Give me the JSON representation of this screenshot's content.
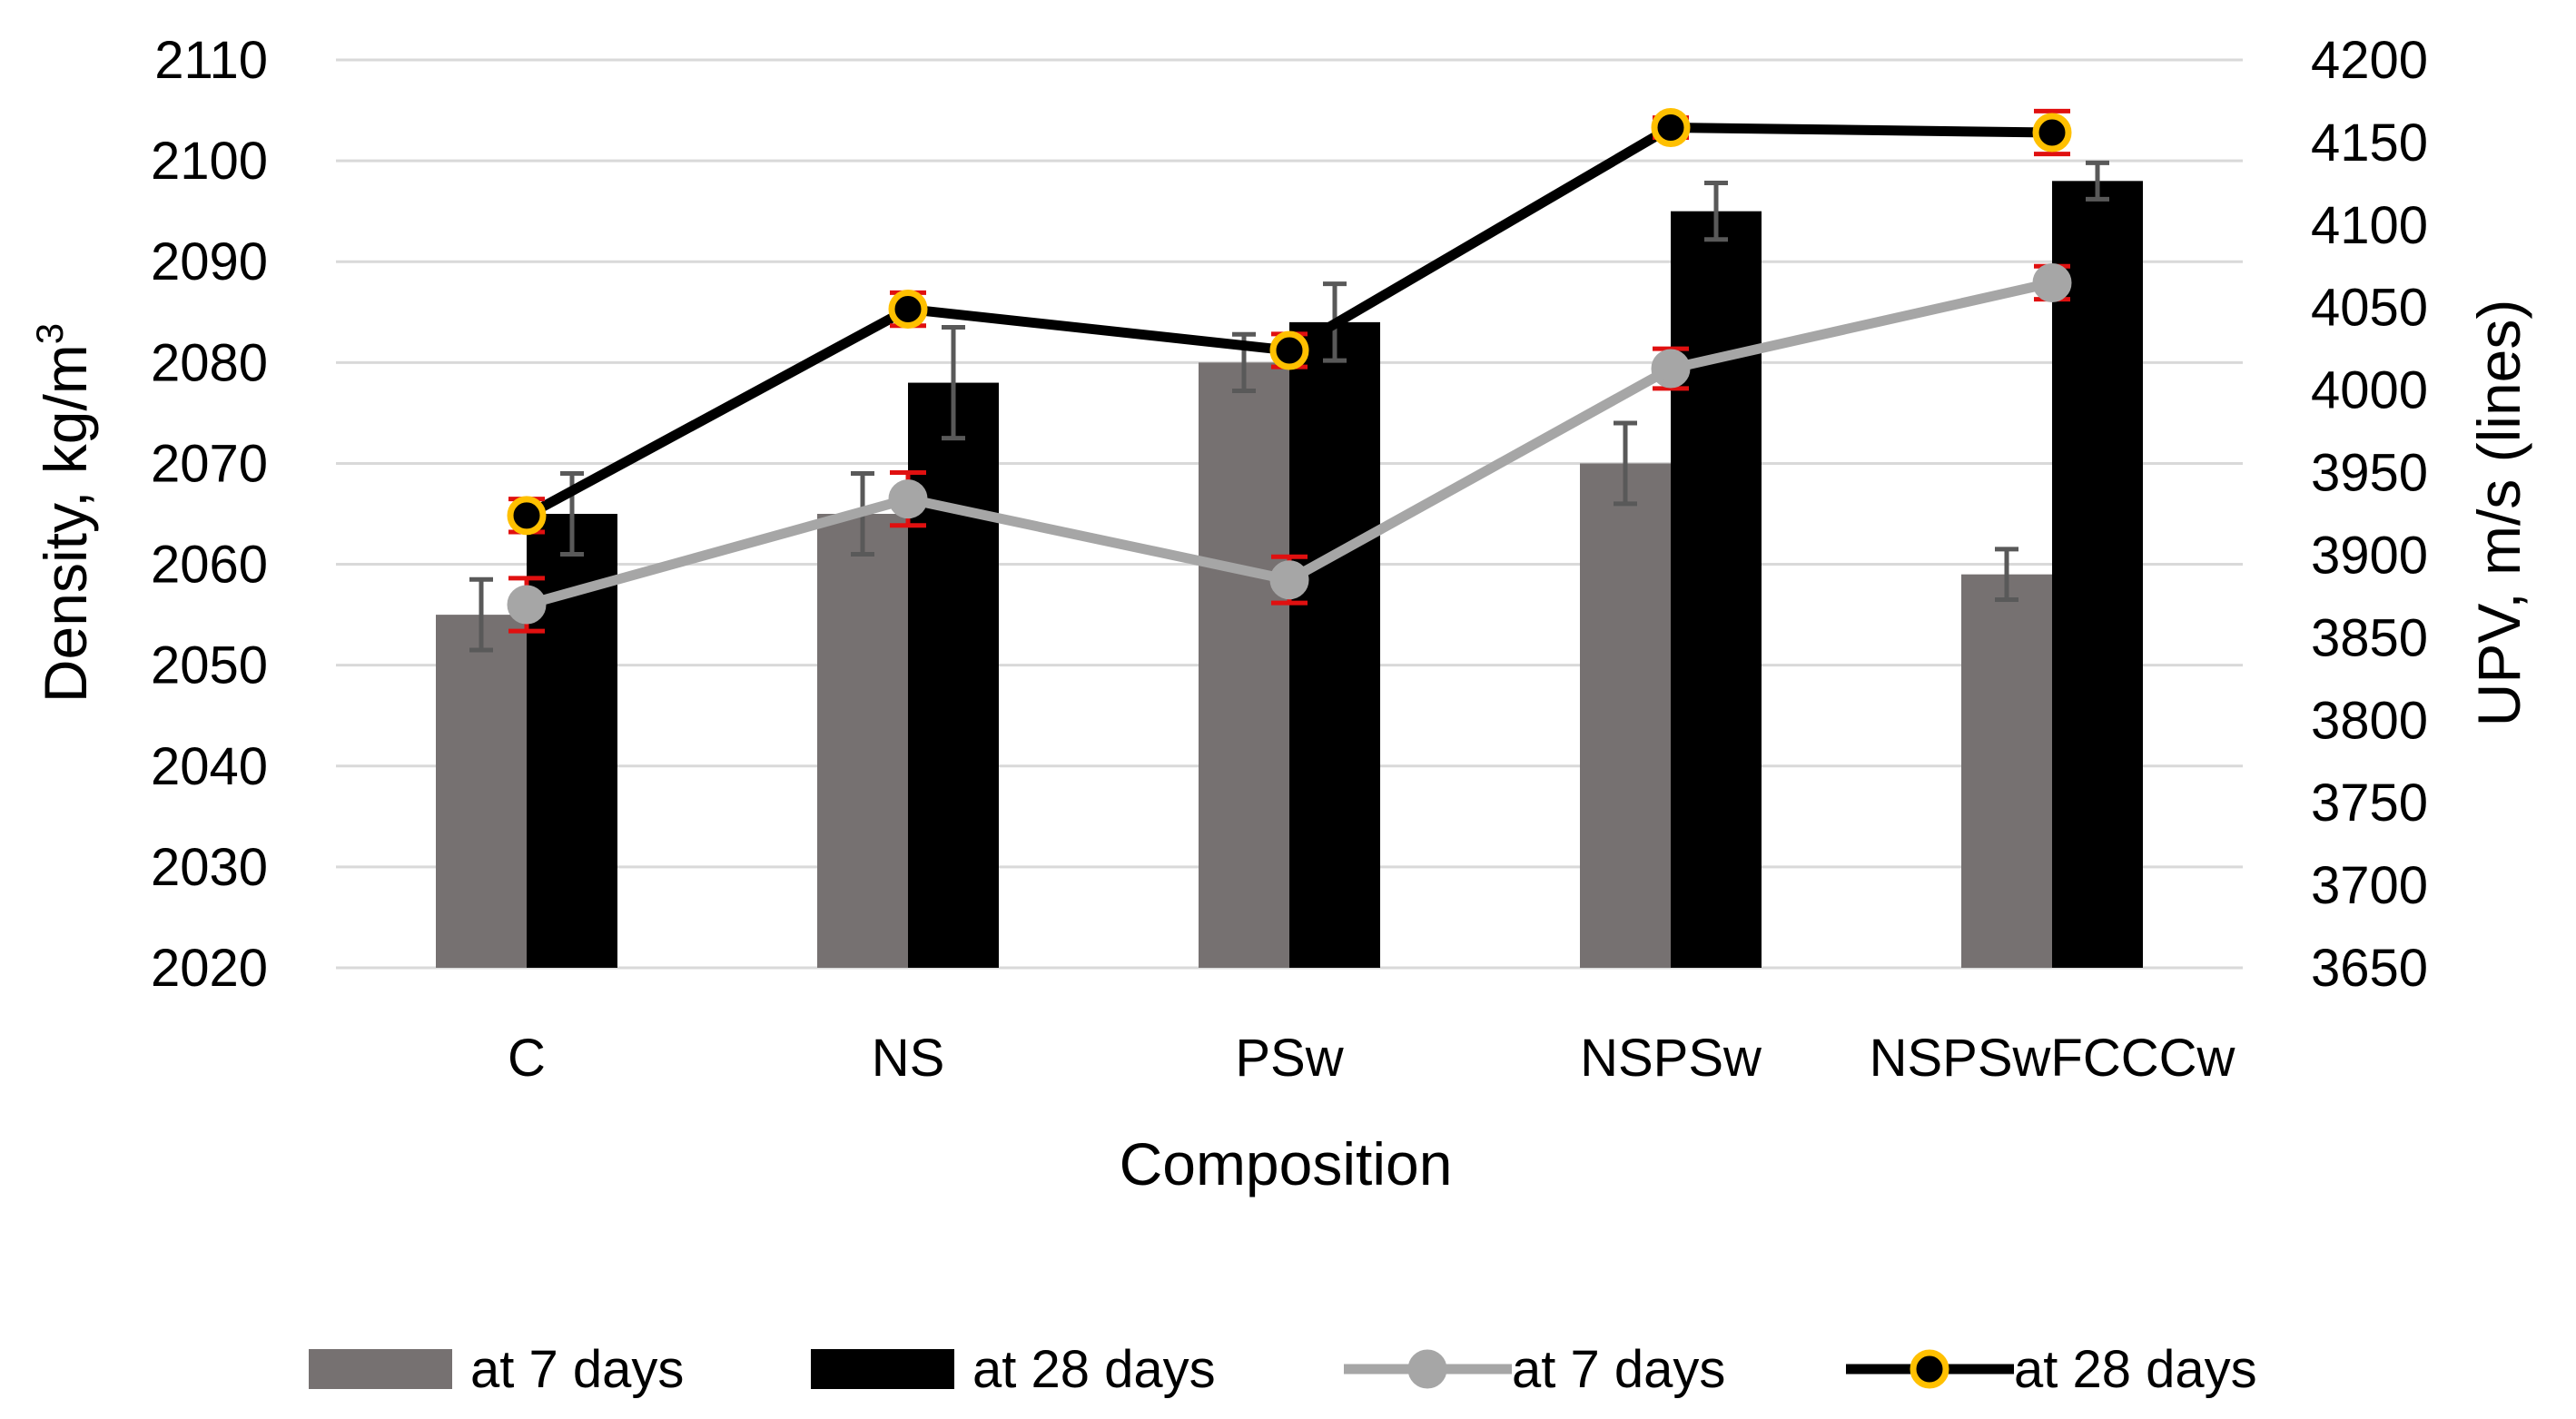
{
  "chart_data": {
    "type": "bar+line",
    "xlabel": "Composition",
    "ylabel_left": "Density, kg/m",
    "ylabel_left_sup": "3",
    "ylabel_right": "UPV, m/s (lines)",
    "categories": [
      "C",
      "NS",
      "PSw",
      "NSPSw",
      "NSPSwFCCCw"
    ],
    "left_axis": {
      "min": 2020,
      "max": 2110,
      "step": 10,
      "ticks": [
        "2020",
        "2030",
        "2040",
        "2050",
        "2060",
        "2070",
        "2080",
        "2090",
        "2100",
        "2110"
      ]
    },
    "right_axis": {
      "min": 3650,
      "max": 4200,
      "step": 50,
      "ticks": [
        "3650",
        "3700",
        "3750",
        "3800",
        "3850",
        "3900",
        "3950",
        "4000",
        "4050",
        "4100",
        "4150",
        "4200"
      ]
    },
    "bar_series": [
      {
        "name": "at 7 days",
        "color": "#767171",
        "values": [
          2055,
          2065,
          2080,
          2070,
          2059
        ],
        "errors": [
          3.5,
          4,
          2.8,
          4,
          2.5
        ]
      },
      {
        "name": "at 28 days",
        "color": "#000000",
        "values": [
          2065,
          2078,
          2084,
          2095,
          2098
        ],
        "errors": [
          4,
          5.5,
          3.8,
          2.8,
          1.8
        ]
      }
    ],
    "line_series": [
      {
        "name": "at 7 days",
        "color": "#a6a6a6",
        "marker_fill": "#a6a6a6",
        "marker_edge": "#a6a6a6",
        "error_color": "#e01010",
        "values": [
          3870,
          3934,
          3885,
          4013,
          4065
        ],
        "errors": [
          16,
          16,
          14,
          12,
          10
        ]
      },
      {
        "name": "at 28 days",
        "color": "#000000",
        "marker_fill": "#000000",
        "marker_edge": "#ffc000",
        "error_color": "#e01010",
        "values": [
          3924,
          4049,
          4024,
          4159,
          4156
        ],
        "errors": [
          10,
          10,
          10,
          6,
          13
        ]
      }
    ],
    "legend": {
      "position": "bottom",
      "items": [
        "at 7 days",
        "at 28 days",
        "at 7 days",
        "at 28 days"
      ]
    },
    "grid": true
  }
}
